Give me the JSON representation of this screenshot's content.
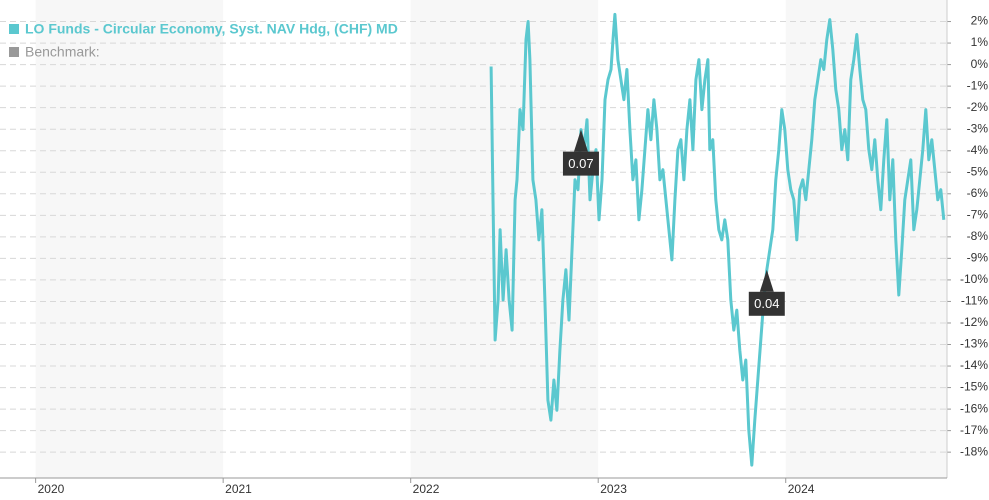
{
  "chart_data": {
    "type": "line",
    "series": [
      {
        "name": "LO Funds - Circular Economy, Syst. NAV Hdg, (CHF) MD",
        "color": "#5bc8cf",
        "x": [
          2022.429,
          2022.439,
          2022.45,
          2022.466,
          2022.477,
          2022.493,
          2022.509,
          2022.525,
          2022.541,
          2022.557,
          2022.567,
          2022.583,
          2022.599,
          2022.615,
          2022.626,
          2022.636,
          2022.652,
          2022.668,
          2022.684,
          2022.7,
          2022.716,
          2022.732,
          2022.748,
          2022.764,
          2022.78,
          2022.796,
          2022.812,
          2022.828,
          2022.844,
          2022.86,
          2022.876,
          2022.892,
          2022.908,
          2022.924,
          2022.94,
          2022.956,
          2022.972,
          2022.988,
          2023.004,
          2023.02,
          2023.036,
          2023.052,
          2023.068,
          2023.079,
          2023.089,
          2023.105,
          2023.121,
          2023.137,
          2023.153,
          2023.169,
          2023.185,
          2023.201,
          2023.217,
          2023.233,
          2023.249,
          2023.265,
          2023.281,
          2023.297,
          2023.313,
          2023.329,
          2023.345,
          2023.361,
          2023.377,
          2023.393,
          2023.409,
          2023.425,
          2023.441,
          2023.457,
          2023.473,
          2023.489,
          2023.505,
          2023.521,
          2023.537,
          2023.553,
          2023.569,
          2023.585,
          2023.595,
          2023.611,
          2023.627,
          2023.643,
          2023.659,
          2023.675,
          2023.691,
          2023.707,
          2023.723,
          2023.739,
          2023.755,
          2023.771,
          2023.787,
          2023.803,
          2023.819,
          2023.835,
          2023.851,
          2023.867,
          2023.883,
          2023.899,
          2023.915,
          2023.931,
          2023.947,
          2023.963,
          2023.979,
          2023.995,
          2024.011,
          2024.027,
          2024.043,
          2024.059,
          2024.075,
          2024.091,
          2024.107,
          2024.123,
          2024.139,
          2024.155,
          2024.171,
          2024.187,
          2024.203,
          2024.219,
          2024.235,
          2024.251,
          2024.267,
          2024.283,
          2024.299,
          2024.315,
          2024.331,
          2024.347,
          2024.363,
          2024.379,
          2024.395,
          2024.411,
          2024.427,
          2024.443,
          2024.459,
          2024.475,
          2024.491,
          2024.507,
          2024.523,
          2024.539,
          2024.555,
          2024.571,
          2024.587,
          2024.603,
          2024.619,
          2024.635,
          2024.651,
          2024.667,
          2024.683,
          2024.699,
          2024.715,
          2024.731,
          2024.747,
          2024.763,
          2024.779,
          2024.795,
          2024.811,
          2024.827,
          2024.843
        ],
        "values": [
          -0.09,
          -6.28,
          -12.79,
          -10.93,
          -7.67,
          -10.93,
          -8.6,
          -10.93,
          -12.33,
          -6.28,
          -5.35,
          -2.09,
          -3.02,
          1.16,
          2.0,
          0.23,
          -5.35,
          -6.28,
          -8.14,
          -6.74,
          -10.93,
          -15.58,
          -16.51,
          -14.65,
          -16.05,
          -13.26,
          -10.93,
          -9.53,
          -11.86,
          -8.6,
          -5.35,
          -5.81,
          -3.02,
          -3.95,
          -2.56,
          -6.28,
          -4.88,
          -3.95,
          -7.21,
          -5.35,
          -1.63,
          -0.7,
          -0.23,
          1.16,
          2.33,
          0.23,
          -0.7,
          -1.63,
          -0.23,
          -3.02,
          -5.35,
          -4.42,
          -7.21,
          -5.81,
          -3.95,
          -2.09,
          -3.49,
          -1.63,
          -3.02,
          -5.35,
          -4.88,
          -6.28,
          -7.67,
          -9.07,
          -6.28,
          -3.95,
          -3.49,
          -5.35,
          -3.02,
          -1.63,
          -3.95,
          -0.7,
          0.23,
          -2.09,
          -0.7,
          0.23,
          -3.95,
          -3.49,
          -6.28,
          -7.67,
          -8.14,
          -7.21,
          -8.14,
          -10.93,
          -12.33,
          -11.4,
          -13.26,
          -14.65,
          -13.72,
          -16.98,
          -18.6,
          -16.51,
          -14.65,
          -12.79,
          -10.93,
          -9.53,
          -8.6,
          -7.67,
          -5.35,
          -3.95,
          -2.09,
          -3.02,
          -4.88,
          -5.81,
          -6.28,
          -8.14,
          -5.81,
          -5.35,
          -6.28,
          -4.88,
          -3.49,
          -1.63,
          -0.7,
          0.23,
          -0.23,
          1.16,
          2.09,
          0.7,
          -1.16,
          -2.09,
          -3.95,
          -3.02,
          -4.42,
          -0.7,
          0.23,
          1.4,
          -0.23,
          -1.63,
          -2.09,
          -3.95,
          -4.88,
          -3.49,
          -5.35,
          -6.74,
          -4.42,
          -2.56,
          -6.28,
          -4.42,
          -8.14,
          -10.7,
          -8.6,
          -6.28,
          -5.35,
          -4.42,
          -7.67,
          -6.74,
          -5.35,
          -3.95,
          -2.09,
          -4.42,
          -3.49,
          -4.88,
          -6.28,
          -5.81,
          -7.21
        ]
      }
    ],
    "benchmark_label": "Benchmark:",
    "benchmark_color": "#999999",
    "annotations": [
      {
        "x": 2022.908,
        "y": -3.02,
        "label": "0.07"
      },
      {
        "x": 2023.899,
        "y": -9.53,
        "label": "0.04"
      }
    ],
    "xlim": [
      2019.81,
      2024.86
    ],
    "xticks": [
      2020,
      2021,
      2022,
      2023,
      2024
    ],
    "ylim": [
      -19.2,
      3.0
    ],
    "yticks": [
      {
        "value": 2,
        "label": "2%"
      },
      {
        "value": 1,
        "label": "1%"
      },
      {
        "value": 0,
        "label": "0%"
      },
      {
        "value": -1,
        "label": "-1%"
      },
      {
        "value": -2,
        "label": "-2%"
      },
      {
        "value": -3,
        "label": "-3%"
      },
      {
        "value": -4,
        "label": "-4%"
      },
      {
        "value": -5,
        "label": "-5%"
      },
      {
        "value": -6,
        "label": "-6%"
      },
      {
        "value": -7,
        "label": "-7%"
      },
      {
        "value": -8,
        "label": "-8%"
      },
      {
        "value": -9,
        "label": "-9%"
      },
      {
        "value": -10,
        "label": "-10%"
      },
      {
        "value": -11,
        "label": "-11%"
      },
      {
        "value": -12,
        "label": "-12%"
      },
      {
        "value": -13,
        "label": "-13%"
      },
      {
        "value": -14,
        "label": "-14%"
      },
      {
        "value": -15,
        "label": "-15%"
      },
      {
        "value": -16,
        "label": "-16%"
      },
      {
        "value": -17,
        "label": "-17%"
      },
      {
        "value": -18,
        "label": "-18%"
      }
    ],
    "grid": true
  }
}
